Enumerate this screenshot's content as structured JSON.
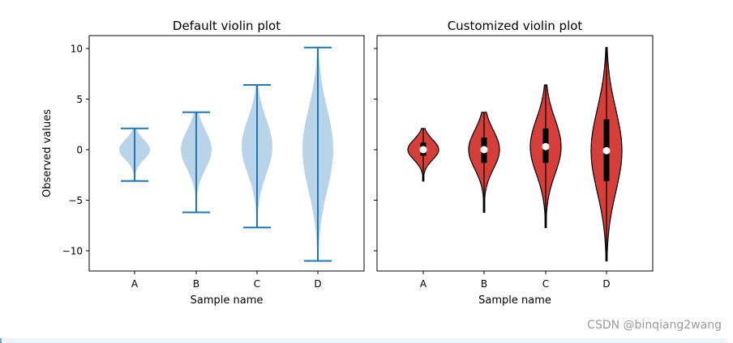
{
  "chart_data": [
    {
      "type": "violin",
      "title": "Default violin plot",
      "xlabel": "Sample name",
      "ylabel": "Observed values",
      "categories": [
        "A",
        "B",
        "C",
        "D"
      ],
      "yticks": [
        10,
        5,
        0,
        -5,
        -10
      ],
      "ytick_labels": [
        "10",
        "5",
        "0",
        "−5",
        "−10"
      ],
      "ylim": [
        -12.0,
        11.2
      ],
      "series": [
        {
          "name": "A",
          "min": -3.1,
          "max": 2.1,
          "max_width": 0.3,
          "center": 0.0,
          "spread": 1.0
        },
        {
          "name": "B",
          "min": -6.2,
          "max": 3.7,
          "max_width": 0.3,
          "center": 0.0,
          "spread": 2.0
        },
        {
          "name": "C",
          "min": -7.7,
          "max": 6.4,
          "max_width": 0.3,
          "center": 0.3,
          "spread": 3.0
        },
        {
          "name": "D",
          "min": -11.0,
          "max": 10.1,
          "max_width": 0.3,
          "center": 0.0,
          "spread": 4.0
        }
      ],
      "colors": {
        "fill": "#b9d4e8",
        "lines": "#1f77b4"
      }
    },
    {
      "type": "violin",
      "title": "Customized violin plot",
      "xlabel": "Sample name",
      "ylabel": "",
      "categories": [
        "A",
        "B",
        "C",
        "D"
      ],
      "yticks": [
        10,
        5,
        0,
        -5,
        -10
      ],
      "ytick_labels": [
        "",
        "",
        "",
        "",
        ""
      ],
      "ylim": [
        -12.0,
        11.2
      ],
      "series": [
        {
          "name": "A",
          "min": -3.1,
          "max": 2.1,
          "q1": -0.6,
          "median": 0.0,
          "q3": 0.7
        },
        {
          "name": "B",
          "min": -6.2,
          "max": 3.7,
          "q1": -1.3,
          "median": 0.0,
          "q3": 1.2
        },
        {
          "name": "C",
          "min": -7.7,
          "max": 6.4,
          "q1": -1.3,
          "median": 0.3,
          "q3": 2.1
        },
        {
          "name": "D",
          "min": -11.0,
          "max": 10.1,
          "q1": -3.1,
          "median": -0.1,
          "q3": 3.0
        }
      ],
      "colors": {
        "fill": "#d43f3a",
        "edge": "#000000",
        "median_dot": "#ffffff"
      }
    }
  ],
  "watermark": "CSDN @binqiang2wang"
}
